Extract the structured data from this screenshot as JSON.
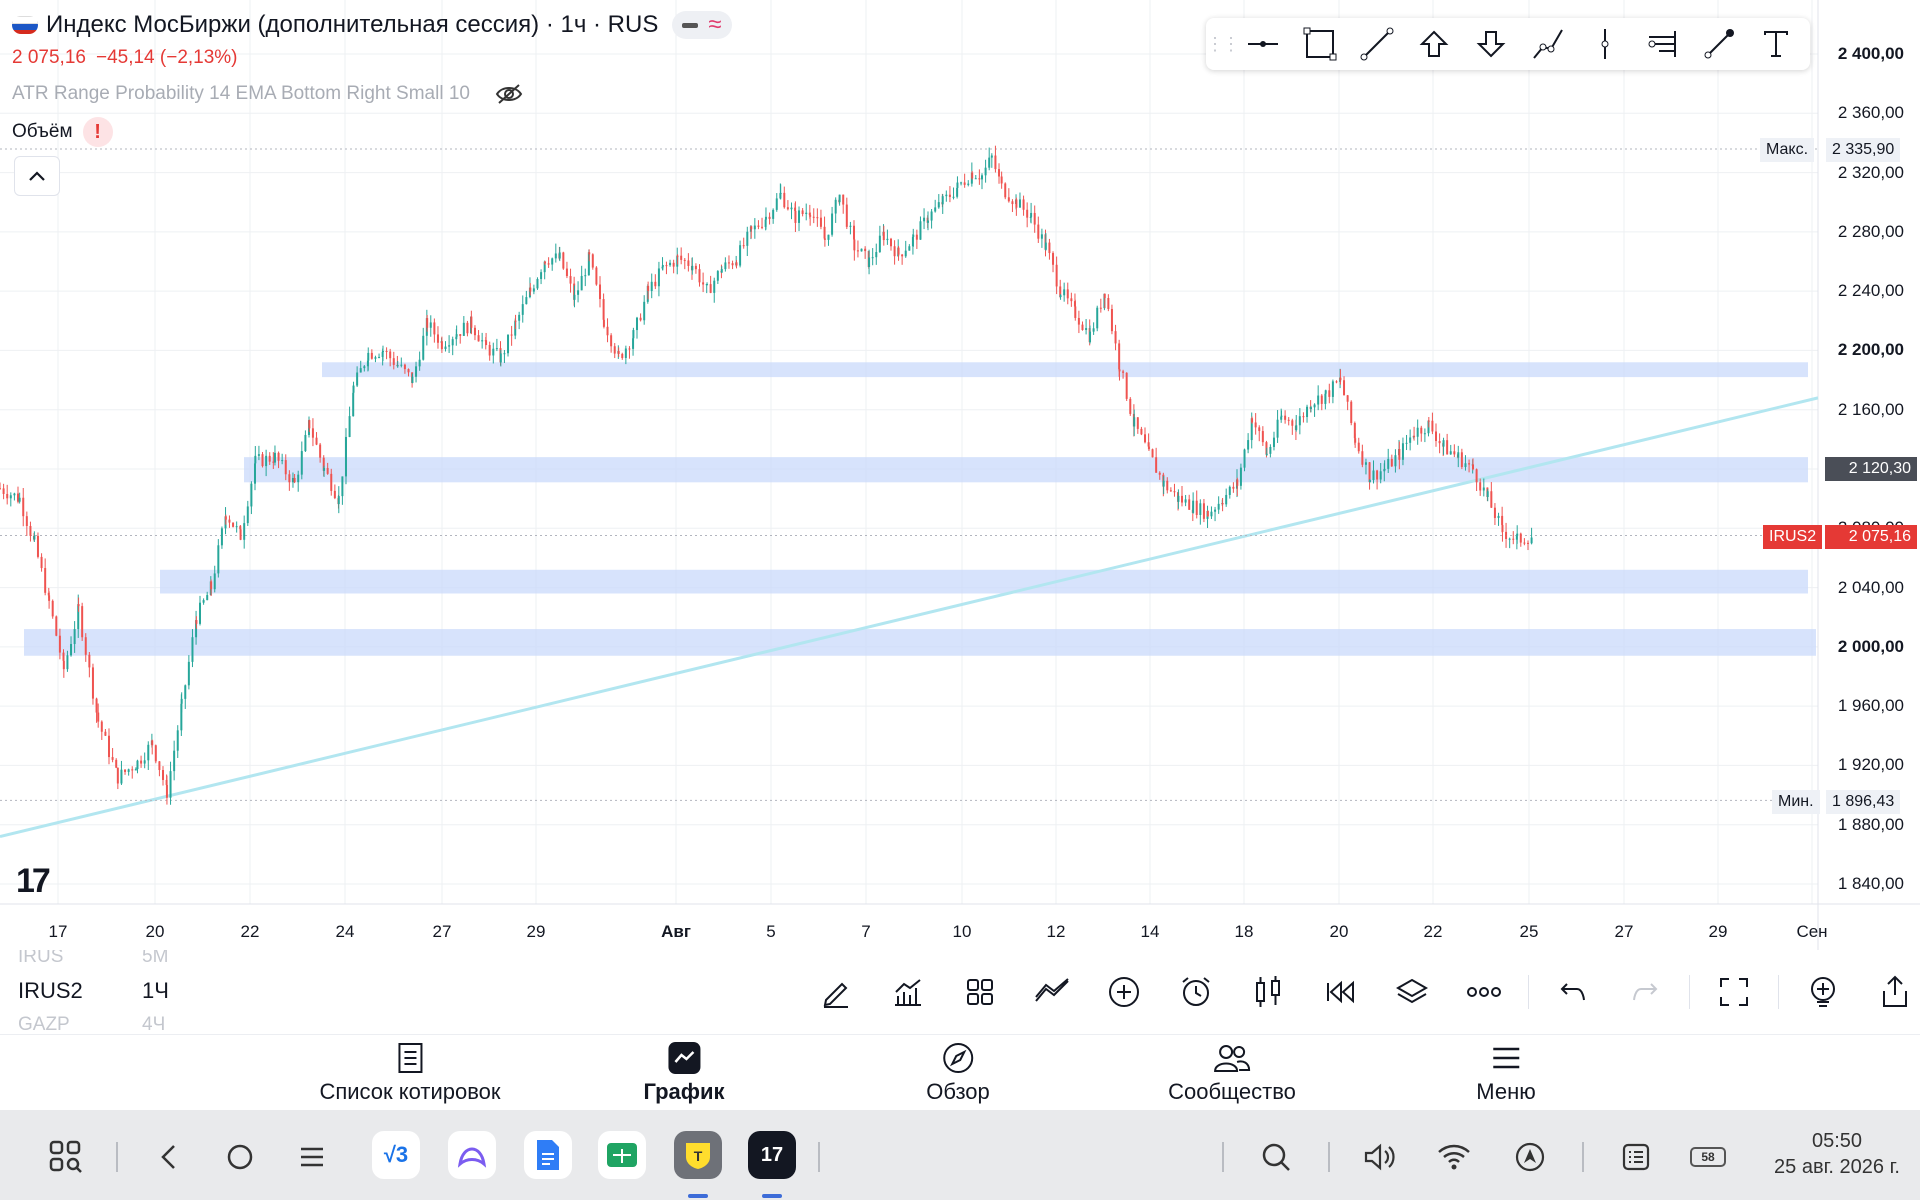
{
  "header": {
    "title": "Индекс МосБиржи (дополнительная сессия) · 1ч · RUS",
    "price": "2 075,16",
    "change": "−45,14 (−2,13%)",
    "indicator": "ATR Range Probability 14 EMA Bottom Right Small 10",
    "volume_label": "Объём",
    "warning": "!"
  },
  "price_axis": {
    "labels": [
      "2 400,00",
      "2 360,00",
      "2 320,00",
      "2 280,00",
      "2 240,00",
      "2 200,00",
      "2 160,00",
      "2 120,00",
      "2 080,00",
      "2 040,00",
      "2 000,00",
      "1 960,00",
      "1 920,00",
      "1 880,00",
      "1 840,00"
    ],
    "max_label": "Макс.",
    "max_value": "2 335,90",
    "min_label": "Мин.",
    "min_value": "1 896,43",
    "crosshair_value": "2 120,30",
    "symbol_tag": "IRUS2",
    "last_value": "2 075,16"
  },
  "time_axis": [
    "17",
    "20",
    "22",
    "24",
    "27",
    "29",
    "Авг",
    "5",
    "7",
    "10",
    "12",
    "14",
    "18",
    "20",
    "22",
    "25",
    "27",
    "29",
    "Сен"
  ],
  "chart_data": {
    "type": "candlestick",
    "ylim": [
      1830,
      2410
    ],
    "last_price": 2075.16,
    "high": 2335.9,
    "low": 1896.43,
    "horizontal_zones": [
      {
        "from": 2182,
        "to": 2192
      },
      {
        "from": 2111,
        "to": 2128
      },
      {
        "from": 2036,
        "to": 2052
      },
      {
        "from": 1994,
        "to": 2012
      }
    ],
    "trendline": [
      {
        "price": 1872
      },
      {
        "price": 2168
      }
    ],
    "path": [
      [
        0.0,
        2107
      ],
      [
        0.02,
        2100
      ],
      [
        0.035,
        2070
      ],
      [
        0.05,
        2030
      ],
      [
        0.065,
        1985
      ],
      [
        0.08,
        2025
      ],
      [
        0.1,
        1950
      ],
      [
        0.12,
        1912
      ],
      [
        0.14,
        1922
      ],
      [
        0.155,
        1935
      ],
      [
        0.17,
        1902
      ],
      [
        0.185,
        1960
      ],
      [
        0.2,
        2020
      ],
      [
        0.215,
        2040
      ],
      [
        0.23,
        2090
      ],
      [
        0.245,
        2075
      ],
      [
        0.26,
        2125
      ],
      [
        0.28,
        2128
      ],
      [
        0.3,
        2110
      ],
      [
        0.315,
        2150
      ],
      [
        0.33,
        2120
      ],
      [
        0.345,
        2100
      ],
      [
        0.36,
        2175
      ],
      [
        0.375,
        2198
      ],
      [
        0.39,
        2200
      ],
      [
        0.405,
        2190
      ],
      [
        0.42,
        2180
      ],
      [
        0.435,
        2218
      ],
      [
        0.45,
        2205
      ],
      [
        0.465,
        2212
      ],
      [
        0.48,
        2218
      ],
      [
        0.495,
        2202
      ],
      [
        0.51,
        2195
      ],
      [
        0.525,
        2218
      ],
      [
        0.54,
        2240
      ],
      [
        0.555,
        2262
      ],
      [
        0.57,
        2262
      ],
      [
        0.585,
        2235
      ],
      [
        0.6,
        2262
      ],
      [
        0.615,
        2220
      ],
      [
        0.63,
        2195
      ],
      [
        0.645,
        2210
      ],
      [
        0.66,
        2240
      ],
      [
        0.675,
        2255
      ],
      [
        0.69,
        2262
      ],
      [
        0.705,
        2258
      ],
      [
        0.72,
        2240
      ],
      [
        0.735,
        2255
      ],
      [
        0.75,
        2262
      ],
      [
        0.765,
        2280
      ],
      [
        0.78,
        2290
      ],
      [
        0.795,
        2305
      ],
      [
        0.81,
        2290
      ],
      [
        0.825,
        2295
      ],
      [
        0.84,
        2275
      ],
      [
        0.855,
        2305
      ],
      [
        0.87,
        2270
      ],
      [
        0.885,
        2260
      ],
      [
        0.9,
        2278
      ],
      [
        0.915,
        2265
      ],
      [
        0.93,
        2275
      ],
      [
        0.945,
        2290
      ],
      [
        0.96,
        2300
      ],
      [
        0.975,
        2310
      ],
      [
        0.99,
        2320
      ],
      [
        1.0,
        2318
      ],
      [
        1.01,
        2330
      ],
      [
        1.02,
        2310
      ],
      [
        1.035,
        2300
      ],
      [
        1.05,
        2290
      ],
      [
        1.065,
        2270
      ],
      [
        1.08,
        2240
      ],
      [
        1.095,
        2225
      ],
      [
        1.11,
        2210
      ],
      [
        1.125,
        2240
      ],
      [
        1.14,
        2190
      ],
      [
        1.155,
        2150
      ],
      [
        1.17,
        2130
      ],
      [
        1.185,
        2110
      ],
      [
        1.2,
        2100
      ],
      [
        1.215,
        2095
      ],
      [
        1.23,
        2090
      ],
      [
        1.245,
        2100
      ],
      [
        1.26,
        2110
      ],
      [
        1.275,
        2155
      ],
      [
        1.29,
        2130
      ],
      [
        1.305,
        2155
      ],
      [
        1.32,
        2150
      ],
      [
        1.335,
        2165
      ],
      [
        1.35,
        2170
      ],
      [
        1.365,
        2180
      ],
      [
        1.38,
        2140
      ],
      [
        1.395,
        2115
      ],
      [
        1.41,
        2120
      ],
      [
        1.425,
        2130
      ],
      [
        1.44,
        2145
      ],
      [
        1.455,
        2150
      ],
      [
        1.47,
        2135
      ],
      [
        1.485,
        2128
      ],
      [
        1.5,
        2120
      ],
      [
        1.515,
        2100
      ],
      [
        1.53,
        2078
      ],
      [
        1.545,
        2072
      ],
      [
        1.56,
        2075
      ]
    ]
  },
  "symbols": [
    {
      "ticker": "IRUS",
      "tf": "5М",
      "faded": true
    },
    {
      "ticker": "IRUS2",
      "tf": "1Ч",
      "faded": false
    },
    {
      "ticker": "GAZP",
      "tf": "4Ч",
      "faded": true
    }
  ],
  "bottom_tools": [
    "pencil-icon",
    "indicators-icon",
    "templates-icon",
    "compare-icon",
    "add-icon",
    "alert-icon",
    "candles-icon",
    "replay-icon",
    "layers-icon",
    "more-icon",
    "undo-icon",
    "redo-icon",
    "fullscreen-icon",
    "zoom-icon",
    "share-icon"
  ],
  "nav": [
    {
      "label": "Список котировок",
      "icon": "watchlist-icon"
    },
    {
      "label": "График",
      "icon": "chart-icon"
    },
    {
      "label": "Обзор",
      "icon": "compass-icon"
    },
    {
      "label": "Сообщество",
      "icon": "community-icon"
    },
    {
      "label": "Меню",
      "icon": "menu-icon"
    }
  ],
  "system": {
    "time": "05:50",
    "date": "25 авг. 2026 г.",
    "battery": "58"
  },
  "colors": {
    "up": "#26a69a",
    "down": "#ef5350",
    "zone": "#c9d9fb",
    "trendline": "#b2e6f0",
    "price_tag": "#e53935"
  }
}
